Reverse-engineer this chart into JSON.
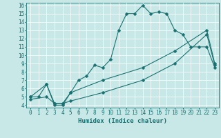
{
  "xlabel": "Humidex (Indice chaleur)",
  "bg_color": "#c8e8e8",
  "line_color": "#1a7070",
  "grid_color": "#ffffff",
  "xlim": [
    -0.5,
    23.5
  ],
  "ylim": [
    3.7,
    16.3
  ],
  "xticks": [
    0,
    1,
    2,
    3,
    4,
    5,
    6,
    7,
    8,
    9,
    10,
    11,
    12,
    13,
    14,
    15,
    16,
    17,
    18,
    19,
    20,
    21,
    22,
    23
  ],
  "yticks": [
    4,
    5,
    6,
    7,
    8,
    9,
    10,
    11,
    12,
    13,
    14,
    15,
    16
  ],
  "line1_x": [
    0,
    1,
    2,
    3,
    4,
    5,
    6,
    7,
    8,
    9,
    10,
    11,
    12,
    13,
    14,
    15,
    16,
    17,
    18,
    19,
    20,
    21,
    22,
    23
  ],
  "line1_y": [
    5.0,
    5.0,
    6.5,
    4.0,
    4.0,
    5.5,
    7.0,
    7.5,
    8.8,
    8.5,
    9.5,
    13.0,
    15.0,
    15.0,
    16.0,
    15.0,
    15.2,
    15.0,
    13.0,
    12.5,
    11.0,
    11.0,
    11.0,
    8.5
  ],
  "line2_x": [
    0,
    2,
    3,
    4,
    5,
    9,
    14,
    18,
    22,
    23
  ],
  "line2_y": [
    4.7,
    5.0,
    4.2,
    4.2,
    4.5,
    5.5,
    7.0,
    9.0,
    12.5,
    8.8
  ],
  "line3_x": [
    0,
    2,
    3,
    4,
    5,
    9,
    14,
    18,
    22,
    23
  ],
  "line3_y": [
    5.0,
    6.5,
    4.2,
    4.2,
    5.5,
    7.0,
    8.5,
    10.5,
    13.0,
    9.0
  ],
  "xlabel_fontsize": 6.5,
  "tick_fontsize": 5.5
}
